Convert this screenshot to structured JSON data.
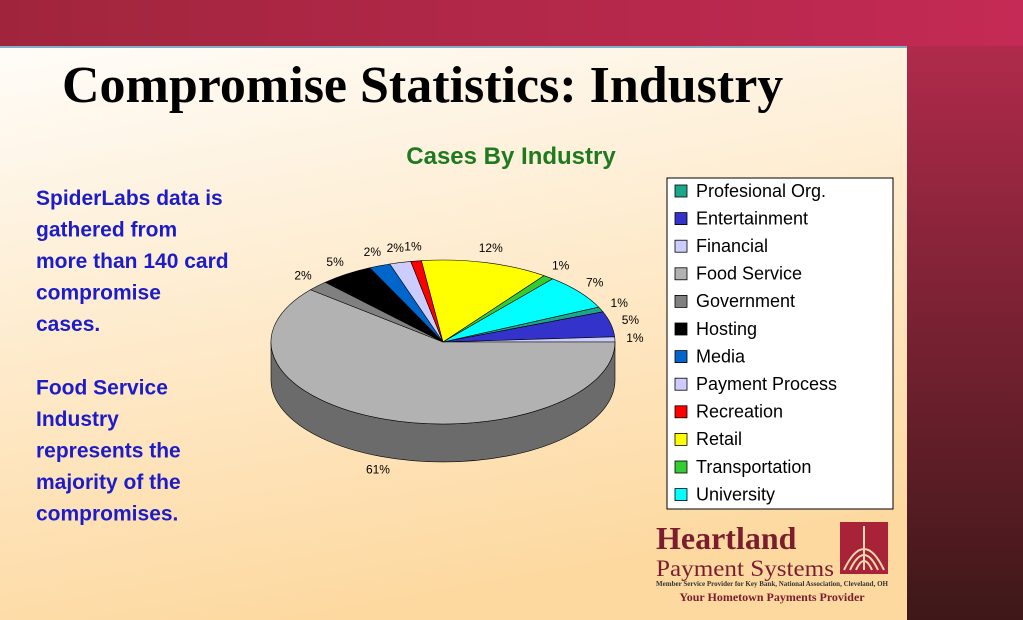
{
  "slide_title": "Compromise Statistics: Industry",
  "body": [
    [
      "SpiderLabs data is",
      "gathered from",
      "more than 140 card",
      "compromise",
      "cases."
    ],
    [
      "Food Service",
      "Industry",
      "represents the",
      "majority of the",
      "compromises."
    ]
  ],
  "chart_data": {
    "type": "pie",
    "title": "Cases By Industry",
    "categories": [
      "Profesional Org.",
      "Entertainment",
      "Financial",
      "Food Service",
      "Government",
      "Hosting",
      "Media",
      "Payment Process",
      "Recreation",
      "Retail",
      "Transportation",
      "University"
    ],
    "values": [
      1,
      5,
      1,
      61,
      2,
      5,
      2,
      2,
      1,
      12,
      1,
      7
    ],
    "value_labels": [
      "1%",
      "5%",
      "1%",
      "61%",
      "2%",
      "5%",
      "2%",
      "2%",
      "1%",
      "12%",
      "1%",
      "7%"
    ],
    "colors": [
      "#1aa88a",
      "#3333cc",
      "#ccccff",
      "#b2b2b2",
      "#808080",
      "#000000",
      "#0066cc",
      "#ccccff",
      "#ff0000",
      "#ffff00",
      "#33cc33",
      "#00ffff"
    ],
    "legend": "right"
  },
  "logo": {
    "name": "Heartland",
    "subname": "Payment Systems",
    "note": "Member Service Provider for Key Bank, National Association, Cleveland, OH",
    "slogan": "Your Hometown Payments Provider"
  }
}
